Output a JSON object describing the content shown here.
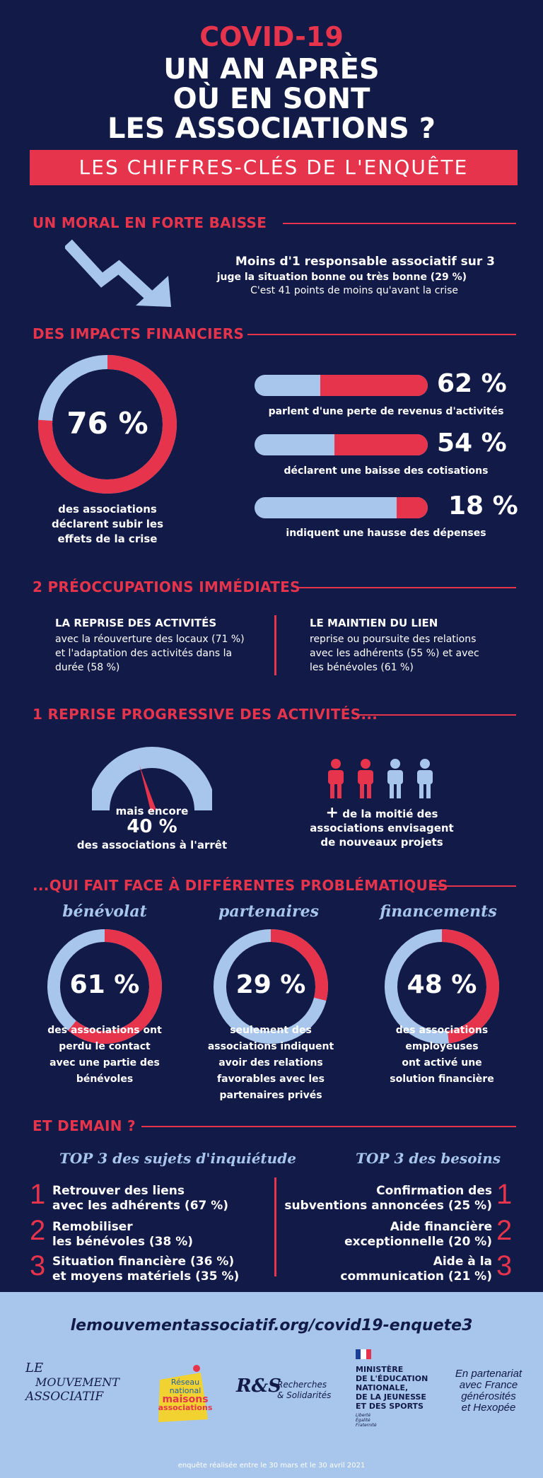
{
  "header": {
    "line1": "COVID-19",
    "line2": "UN AN APRÈS",
    "line3": "OÙ EN SONT",
    "line4": "LES ASSOCIATIONS ?",
    "banner": "LES CHIFFRES-CLÉS DE L'ENQUÊTE"
  },
  "moral": {
    "title": "UN MORAL EN FORTE BAISSE",
    "line1": "Moins d'1 responsable associatif sur 3",
    "line2": "juge la situation bonne ou très bonne (29 %)",
    "line3": "C'est 41 points de moins qu'avant la crise"
  },
  "financial": {
    "title": "DES IMPACTS FINANCIERS",
    "donut_label": "76 %",
    "donut_value": 76,
    "donut_text": [
      "des associations",
      "déclarent subir les",
      "effets de la crise"
    ],
    "bars": [
      {
        "pct": "62 %",
        "value": 62,
        "text": "parlent d'une perte de revenus d'activités"
      },
      {
        "pct": "54 %",
        "value": 54,
        "text": "déclarent une baisse des cotisations"
      },
      {
        "pct": "18 %",
        "value": 18,
        "text": "indiquent une hausse des dépenses"
      }
    ]
  },
  "concerns": {
    "title": "2 PRÉOCCUPATIONS IMMÉDIATES",
    "left_title": "LA REPRISE DES ACTIVITÉS",
    "left_text": [
      "avec la réouverture des locaux (71 %)",
      "et l'adaptation des activités dans la",
      "durée (58 %)"
    ],
    "right_title": "LE MAINTIEN DU LIEN",
    "right_text": [
      "reprise ou poursuite des relations",
      "avec les adhérents (55 %) et avec",
      "les bénévoles (61 %)"
    ]
  },
  "reprise": {
    "title": "1 REPRISE PROGRESSIVE DES ACTIVITÉS...",
    "gauge_text1": "mais encore",
    "gauge_pct": "40 %",
    "gauge_text2": "des associations à l'arrêt",
    "people_plus": "+",
    "people_text": [
      "de la moitié des",
      "associations envisagent",
      "de nouveaux projets"
    ]
  },
  "problems": {
    "title": "...QUI FAIT FACE À DIFFÉRENTES PROBLÉMATIQUES",
    "items": [
      {
        "label": "bénévolat",
        "pct": "61 %",
        "value": 61,
        "text": [
          "des associations ont",
          "perdu le contact",
          "avec une partie des",
          "bénévoles"
        ]
      },
      {
        "label": "partenaires",
        "pct": "29 %",
        "value": 29,
        "text": [
          "seulement des",
          "associations indiquent",
          "avoir des relations",
          "favorables avec les",
          "partenaires privés"
        ]
      },
      {
        "label": "financements",
        "pct": "48 %",
        "value": 48,
        "text": [
          "des associations",
          "employeuses",
          "ont activé une",
          "solution financière"
        ]
      }
    ]
  },
  "tomorrow": {
    "title": "ET DEMAIN ?",
    "left_title": "TOP 3 des sujets d'inquiétude",
    "right_title": "TOP 3 des besoins",
    "left": [
      {
        "n": "1",
        "lines": [
          "Retrouver des liens",
          "avec les adhérents (67 %)"
        ]
      },
      {
        "n": "2",
        "lines": [
          "Remobiliser",
          "les bénévoles (38 %)"
        ]
      },
      {
        "n": "3",
        "lines": [
          "Situation financière (36 %)",
          "et moyens matériels (35 %)"
        ]
      }
    ],
    "right": [
      {
        "n": "1",
        "lines": [
          "Confirmation des",
          "subventions annoncées (25 %)"
        ]
      },
      {
        "n": "2",
        "lines": [
          "Aide financière",
          "exceptionnelle (20 %)"
        ]
      },
      {
        "n": "3",
        "lines": [
          "Aide à la",
          "communication (21 %)"
        ]
      }
    ]
  },
  "footer": {
    "url": "lemouvementassociatif.org/covid19-enquete3",
    "logo1": [
      "LE",
      "MOUVEMENT",
      "ASSOCIATIF"
    ],
    "logo2": [
      "Réseau",
      "national",
      "maisons",
      "associations"
    ],
    "logo3_mark": "R&S",
    "logo3": [
      "Recherches",
      "& Solidarités"
    ],
    "logo4": [
      "MINISTÈRE",
      "DE L'ÉDUCATION",
      "NATIONALE,",
      "DE LA JEUNESSE",
      "ET DES SPORTS"
    ],
    "logo4_motto": [
      "Liberté",
      "Égalité",
      "Fraternité"
    ],
    "partner": [
      "En partenariat",
      "avec France",
      "générosités",
      "et Hexopée"
    ],
    "note": "enquête réalisée entre le 30 mars et le 30 avril 2021"
  },
  "colors": {
    "background": "#121a47",
    "accent": "#e5344b",
    "light": "#a8c6ec"
  }
}
